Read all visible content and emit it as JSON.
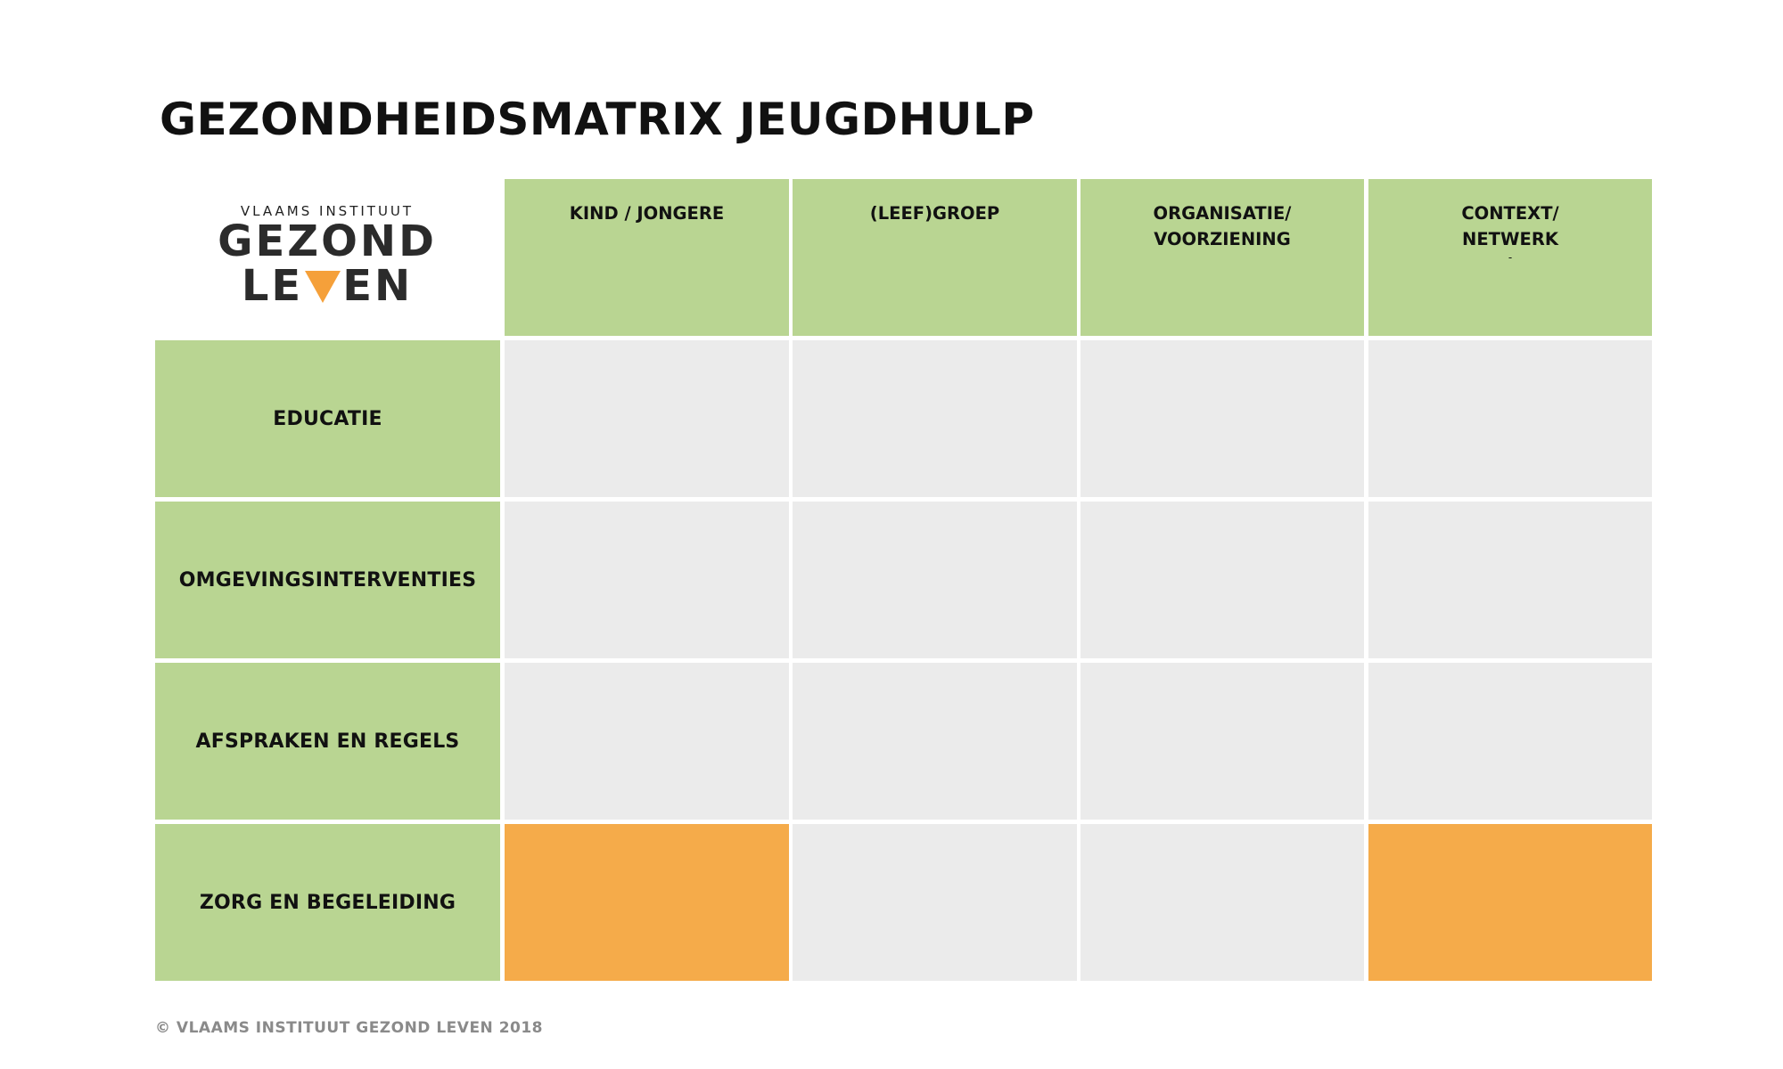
{
  "title": "GEZONDHEIDSMATRIX JEUGDHULP",
  "logo": {
    "small": "VLAAMS INSTITUUT",
    "line1": "GEZOND",
    "line2_left": "LE",
    "line2_right": "EN"
  },
  "columns": [
    {
      "line1": "KIND / JONGERE",
      "line2": "",
      "dot": ""
    },
    {
      "line1": "(LEEF)GROEP",
      "line2": "",
      "dot": ""
    },
    {
      "line1": "ORGANISATIE/",
      "line2": "VOORZIENING",
      "dot": ""
    },
    {
      "line1": "CONTEXT/",
      "line2": "NETWERK",
      "dot": "-"
    }
  ],
  "rows": [
    {
      "label": "EDUCATIE",
      "cells": [
        "grey",
        "grey",
        "grey",
        "grey"
      ]
    },
    {
      "label": "OMGEVINGSINTERVENTIES",
      "cells": [
        "grey",
        "grey",
        "grey",
        "grey"
      ]
    },
    {
      "label": "AFSPRAKEN EN REGELS",
      "cells": [
        "grey",
        "grey",
        "grey",
        "grey"
      ]
    },
    {
      "label": "ZORG EN BEGELEIDING",
      "cells": [
        "orange",
        "grey",
        "grey",
        "orange"
      ]
    }
  ],
  "colors": {
    "green": "#b9d592",
    "grey": "#ebebeb",
    "orange": "#f5ab4a",
    "logo_triangle": "#f5a03a"
  },
  "footer": "© VLAAMS INSTITUUT GEZOND LEVEN 2018"
}
